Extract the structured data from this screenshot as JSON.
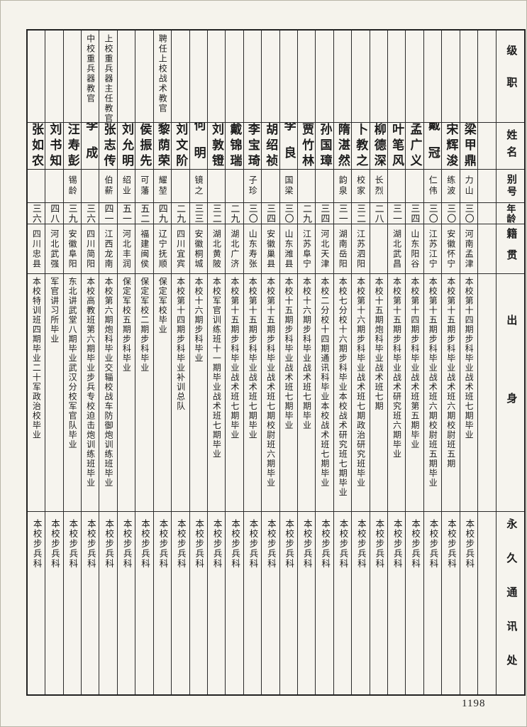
{
  "page": {
    "number": "1198",
    "headers": {
      "rank": "级职",
      "name": "姓名",
      "alias": "别号",
      "age": "年龄",
      "native_place": "籍贯",
      "background": "出身",
      "contact": "永久通讯处"
    },
    "people": [
      {
        "rank": "",
        "name": "梁甲鼎",
        "alias": "力山",
        "age": "三〇",
        "native": "河南孟津",
        "background": "本校第十四期步科毕业战术班七期毕业",
        "contact": "本校步兵科"
      },
      {
        "rank": "",
        "name": "宋辉浚",
        "alias": "练波",
        "age": "三〇",
        "native": "安徽怀宁",
        "background": "本校第十五期步科毕业战术班六期校尉班五期",
        "contact": "本校步兵科"
      },
      {
        "rank": "",
        "name": "戴冠",
        "alias": "仁伟",
        "age": "三〇",
        "native": "江苏江宁",
        "background": "本校第十五期步科毕业战术班六期校尉班五期毕业",
        "contact": "本校步兵科"
      },
      {
        "rank": "",
        "name": "孟广义",
        "alias": "",
        "age": "三四",
        "native": "山东阳谷",
        "background": "本校第十四期步科毕业战术班第五期毕业",
        "contact": "本校步兵科"
      },
      {
        "rank": "",
        "name": "叶笔风",
        "alias": "",
        "age": "三一",
        "native": "湖北武昌",
        "background": "本校第十五期步科毕业战术研究班六期毕业",
        "contact": "本校步兵科"
      },
      {
        "rank": "",
        "name": "柳德深",
        "alias": "长烈",
        "age": "二八",
        "native": "",
        "background": "本校十五期炮科毕业战术班七期",
        "contact": "本校步兵科"
      },
      {
        "rank": "",
        "name": "卜教之",
        "alias": "校家",
        "age": "三二",
        "native": "江苏泗阳",
        "background": "本校第十六期步科毕业战术班七期政治研究班毕业",
        "contact": "本校步兵科"
      },
      {
        "rank": "",
        "name": "隋湛然",
        "alias": "韵泉",
        "age": "三一",
        "native": "湖南岳阳",
        "background": "本校七分校十六期步科毕业本校战术研究班七期毕业",
        "contact": "本校步兵科"
      },
      {
        "rank": "",
        "name": "孙国璋",
        "alias": "",
        "age": "三四",
        "native": "河北天津",
        "background": "本校二分校十四期通讯科毕业本校战术班七期毕业",
        "contact": "本校步兵科"
      },
      {
        "rank": "",
        "name": "贾竹林",
        "alias": "",
        "age": "二九",
        "native": "江苏阜宁",
        "background": "本校十六期步科毕业战术班七期毕业",
        "contact": "本校步兵科"
      },
      {
        "rank": "",
        "name": "李良",
        "alias": "国梁",
        "age": "三〇",
        "native": "山东潍县",
        "background": "本校十五期步科毕业战术班七期毕业",
        "contact": "本校步兵科"
      },
      {
        "rank": "",
        "name": "胡绍祯",
        "alias": "",
        "age": "三四",
        "native": "安徽巢县",
        "background": "本校第十五期步科毕业战术班七期校尉班六期毕业",
        "contact": "本校步兵科"
      },
      {
        "rank": "",
        "name": "李宝琦",
        "alias": "子珍",
        "age": "三〇",
        "native": "山东寿张",
        "background": "本校第十五期步科毕业战术班七期毕业",
        "contact": "本校步兵科"
      },
      {
        "rank": "",
        "name": "戴锦瑞",
        "alias": "",
        "age": "二九",
        "native": "湖北广济",
        "background": "本校第十五期步科毕业战术班七期毕业",
        "contact": "本校步兵科"
      },
      {
        "rank": "",
        "name": "刘敦镫",
        "alias": "",
        "age": "三二",
        "native": "湖北黄陂",
        "background": "本校军官训练班十一期毕业战术班七期毕业",
        "contact": "本校步兵科"
      },
      {
        "rank": "",
        "name": "何明",
        "alias": "镜之",
        "age": "三三",
        "native": "安徽桐城",
        "background": "本校十六期步科毕业",
        "contact": "本校步兵科"
      },
      {
        "rank": "",
        "name": "刘文阶",
        "alias": "",
        "age": "二九",
        "native": "四川宜宾",
        "background": "本校第十四期步科毕业补训总队",
        "contact": "本校步兵科"
      },
      {
        "rank": "聘任上校战术教官",
        "name": "黎荫荣",
        "alias": "耀堃",
        "age": "四九",
        "native": "辽宁抚顺",
        "background": "保定军校毕业",
        "contact": "本校步兵科"
      },
      {
        "rank": "",
        "name": "侯振先",
        "alias": "可藩",
        "age": "五二",
        "native": "福建闽侯",
        "background": "保定军校二期步科毕业",
        "contact": "本校步兵科"
      },
      {
        "rank": "",
        "name": "刘允明",
        "alias": "绍业",
        "age": "五一",
        "native": "河北丰润",
        "background": "保定军校五期步科毕业",
        "contact": "本校步兵科"
      },
      {
        "rank": "上校重兵器主任教官",
        "name": "张志传",
        "alias": "伯薪",
        "age": "四一",
        "native": "江西龙南",
        "background": "本校第六期炮科毕业交辎校战车防御炮训练班毕业",
        "contact": "本校步兵科"
      },
      {
        "rank": "中校重兵器教官",
        "name": "李成",
        "alias": "",
        "age": "三六",
        "native": "四川简阳",
        "background": "本校高教班第六期毕业步兵专校迫击炮训练班毕业",
        "contact": "本校步兵科"
      },
      {
        "rank": "",
        "name": "汪寿彭",
        "alias": "锡龄",
        "age": "三九",
        "native": "安徽阜阳",
        "background": "东北讲武堂八期毕业武汉分校军官队毕业",
        "contact": "本校步兵科"
      },
      {
        "rank": "",
        "name": "刘书知",
        "alias": "",
        "age": "四八",
        "native": "河北武强",
        "background": "军官讲习所毕业",
        "contact": "本校步兵科"
      },
      {
        "rank": "",
        "name": "张如农",
        "alias": "",
        "age": "三六",
        "native": "四川忠县",
        "background": "本校特训班四期毕业二十军政治校毕业",
        "contact": "本校步兵科"
      }
    ]
  }
}
